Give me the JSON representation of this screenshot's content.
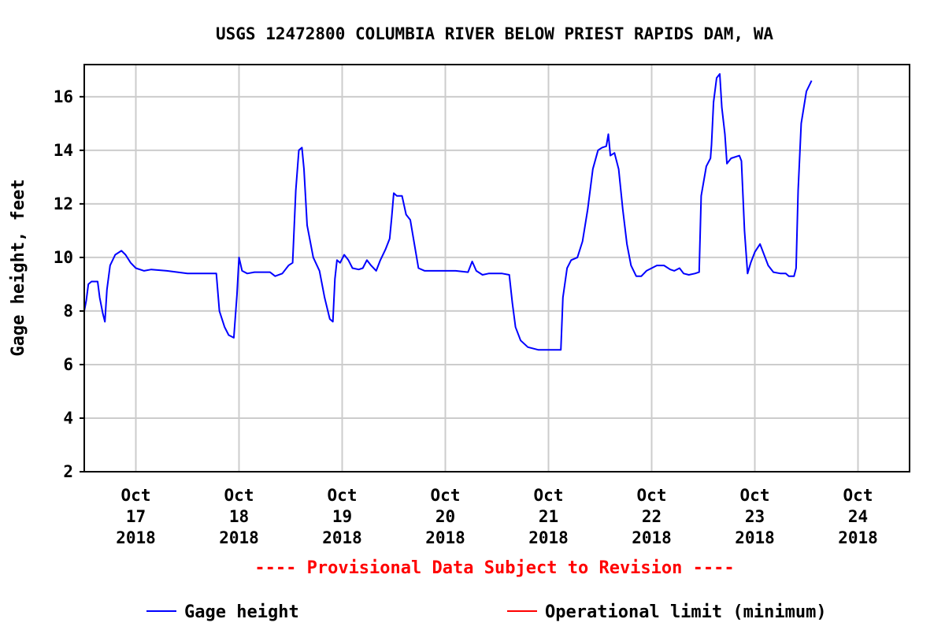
{
  "chart_data": {
    "type": "line",
    "title": "USGS 12472800 COLUMBIA RIVER BELOW PRIEST RAPIDS DAM, WA",
    "ylabel": "Gage height, feet",
    "xlabel": "",
    "xlim": [
      16.5,
      24.5
    ],
    "ylim": [
      2,
      17.2
    ],
    "yticks": [
      2,
      4,
      6,
      8,
      10,
      12,
      14,
      16
    ],
    "xticks": [
      {
        "x": 17,
        "month": "Oct",
        "day": "17",
        "year": "2018"
      },
      {
        "x": 18,
        "month": "Oct",
        "day": "18",
        "year": "2018"
      },
      {
        "x": 19,
        "month": "Oct",
        "day": "19",
        "year": "2018"
      },
      {
        "x": 20,
        "month": "Oct",
        "day": "20",
        "year": "2018"
      },
      {
        "x": 21,
        "month": "Oct",
        "day": "21",
        "year": "2018"
      },
      {
        "x": 22,
        "month": "Oct",
        "day": "22",
        "year": "2018"
      },
      {
        "x": 23,
        "month": "Oct",
        "day": "23",
        "year": "2018"
      },
      {
        "x": 24,
        "month": "Oct",
        "day": "24",
        "year": "2018"
      }
    ],
    "grid": true,
    "series": [
      {
        "name": "Gage height",
        "color": "#0000ff",
        "points": [
          [
            16.5,
            8.0
          ],
          [
            16.52,
            8.4
          ],
          [
            16.54,
            9.0
          ],
          [
            16.57,
            9.1
          ],
          [
            16.63,
            9.1
          ],
          [
            16.65,
            8.5
          ],
          [
            16.68,
            7.9
          ],
          [
            16.7,
            7.6
          ],
          [
            16.72,
            8.8
          ],
          [
            16.75,
            9.7
          ],
          [
            16.8,
            10.1
          ],
          [
            16.86,
            10.25
          ],
          [
            16.9,
            10.1
          ],
          [
            16.95,
            9.8
          ],
          [
            17.0,
            9.6
          ],
          [
            17.08,
            9.5
          ],
          [
            17.15,
            9.55
          ],
          [
            17.3,
            9.5
          ],
          [
            17.5,
            9.4
          ],
          [
            17.78,
            9.4
          ],
          [
            17.81,
            8.0
          ],
          [
            17.86,
            7.4
          ],
          [
            17.9,
            7.1
          ],
          [
            17.95,
            7.0
          ],
          [
            17.98,
            8.6
          ],
          [
            18.0,
            10.0
          ],
          [
            18.03,
            9.5
          ],
          [
            18.08,
            9.4
          ],
          [
            18.15,
            9.45
          ],
          [
            18.3,
            9.45
          ],
          [
            18.35,
            9.3
          ],
          [
            18.42,
            9.4
          ],
          [
            18.48,
            9.7
          ],
          [
            18.52,
            9.8
          ],
          [
            18.55,
            12.5
          ],
          [
            18.58,
            14.0
          ],
          [
            18.61,
            14.1
          ],
          [
            18.63,
            13.3
          ],
          [
            18.66,
            11.2
          ],
          [
            18.72,
            10.0
          ],
          [
            18.78,
            9.5
          ],
          [
            18.83,
            8.5
          ],
          [
            18.88,
            7.7
          ],
          [
            18.91,
            7.6
          ],
          [
            18.93,
            9.2
          ],
          [
            18.95,
            9.9
          ],
          [
            18.98,
            9.8
          ],
          [
            19.02,
            10.1
          ],
          [
            19.06,
            9.9
          ],
          [
            19.1,
            9.6
          ],
          [
            19.16,
            9.55
          ],
          [
            19.2,
            9.6
          ],
          [
            19.24,
            9.9
          ],
          [
            19.28,
            9.7
          ],
          [
            19.33,
            9.5
          ],
          [
            19.37,
            9.9
          ],
          [
            19.42,
            10.3
          ],
          [
            19.46,
            10.7
          ],
          [
            19.48,
            11.5
          ],
          [
            19.5,
            12.4
          ],
          [
            19.53,
            12.3
          ],
          [
            19.58,
            12.3
          ],
          [
            19.62,
            11.6
          ],
          [
            19.66,
            11.4
          ],
          [
            19.7,
            10.5
          ],
          [
            19.74,
            9.6
          ],
          [
            19.8,
            9.5
          ],
          [
            19.9,
            9.5
          ],
          [
            20.0,
            9.5
          ],
          [
            20.1,
            9.5
          ],
          [
            20.22,
            9.45
          ],
          [
            20.26,
            9.85
          ],
          [
            20.3,
            9.5
          ],
          [
            20.36,
            9.35
          ],
          [
            20.42,
            9.4
          ],
          [
            20.55,
            9.4
          ],
          [
            20.62,
            9.35
          ],
          [
            20.65,
            8.3
          ],
          [
            20.68,
            7.4
          ],
          [
            20.73,
            6.9
          ],
          [
            20.8,
            6.65
          ],
          [
            20.9,
            6.55
          ],
          [
            20.98,
            6.55
          ],
          [
            21.12,
            6.55
          ],
          [
            21.14,
            8.5
          ],
          [
            21.18,
            9.6
          ],
          [
            21.22,
            9.9
          ],
          [
            21.28,
            10.0
          ],
          [
            21.33,
            10.6
          ],
          [
            21.38,
            11.8
          ],
          [
            21.43,
            13.3
          ],
          [
            21.48,
            14.0
          ],
          [
            21.52,
            14.1
          ],
          [
            21.56,
            14.15
          ],
          [
            21.58,
            14.6
          ],
          [
            21.6,
            13.8
          ],
          [
            21.64,
            13.9
          ],
          [
            21.68,
            13.3
          ],
          [
            21.72,
            11.8
          ],
          [
            21.76,
            10.5
          ],
          [
            21.8,
            9.7
          ],
          [
            21.85,
            9.3
          ],
          [
            21.9,
            9.3
          ],
          [
            21.95,
            9.5
          ],
          [
            22.0,
            9.6
          ],
          [
            22.05,
            9.7
          ],
          [
            22.12,
            9.7
          ],
          [
            22.18,
            9.55
          ],
          [
            22.22,
            9.5
          ],
          [
            22.27,
            9.6
          ],
          [
            22.31,
            9.4
          ],
          [
            22.36,
            9.35
          ],
          [
            22.42,
            9.4
          ],
          [
            22.46,
            9.45
          ],
          [
            22.48,
            12.3
          ],
          [
            22.53,
            13.4
          ],
          [
            22.57,
            13.7
          ],
          [
            22.58,
            14.2
          ],
          [
            22.6,
            15.8
          ],
          [
            22.63,
            16.7
          ],
          [
            22.66,
            16.85
          ],
          [
            22.68,
            15.6
          ],
          [
            22.71,
            14.6
          ],
          [
            22.73,
            13.5
          ],
          [
            22.77,
            13.7
          ],
          [
            22.85,
            13.8
          ],
          [
            22.87,
            13.6
          ],
          [
            22.9,
            11.0
          ],
          [
            22.93,
            9.4
          ],
          [
            22.96,
            9.8
          ],
          [
            23.0,
            10.2
          ],
          [
            23.05,
            10.5
          ],
          [
            23.09,
            10.1
          ],
          [
            23.13,
            9.7
          ],
          [
            23.18,
            9.45
          ],
          [
            23.25,
            9.4
          ],
          [
            23.3,
            9.4
          ],
          [
            23.33,
            9.3
          ],
          [
            23.38,
            9.3
          ],
          [
            23.4,
            9.6
          ],
          [
            23.42,
            12.5
          ],
          [
            23.45,
            15.0
          ],
          [
            23.5,
            16.2
          ],
          [
            23.55,
            16.6
          ]
        ]
      },
      {
        "name": "Operational limit (minimum)",
        "color": "#ff0000",
        "points": [
          [
            16.5,
            2.0
          ],
          [
            24.5,
            2.0
          ]
        ]
      }
    ],
    "annotation": "---- Provisional Data Subject to Revision ----",
    "legend": {
      "placement": "bottom",
      "entries": [
        {
          "label": "Gage height",
          "color": "#0000ff"
        },
        {
          "label": "Operational limit (minimum)",
          "color": "#ff0000"
        }
      ]
    }
  }
}
